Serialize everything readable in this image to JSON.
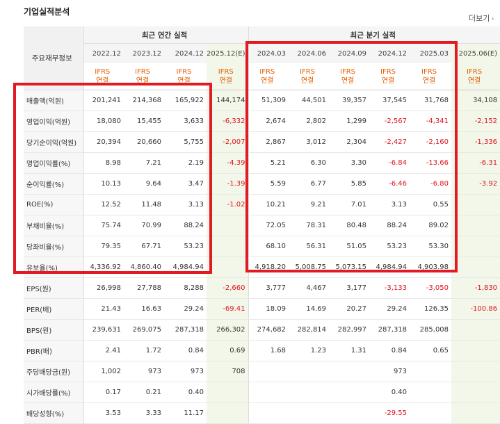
{
  "title": "기업실적분석",
  "more_label": "더보기",
  "header_label": "주요재무정보",
  "annual_group": "최근 연간 실적",
  "quarter_group": "최근 분기 실적",
  "periods": [
    "2022.12",
    "2023.12",
    "2024.12",
    "2025.12(E)",
    "2024.03",
    "2024.06",
    "2024.09",
    "2024.12",
    "2025.03",
    "2025.06(E)"
  ],
  "standard_top": "IFRS",
  "standard_bottom": "연결",
  "colors": {
    "negative": "#e0141e",
    "ifrs": "#e35f00",
    "highlight_box": "#e21b23"
  },
  "rows": [
    {
      "label": "매출액(억원)",
      "values": [
        "201,241",
        "214,368",
        "165,922",
        "144,174",
        "51,309",
        "44,501",
        "39,357",
        "37,545",
        "31,768",
        "34,108"
      ]
    },
    {
      "label": "영업이익(억원)",
      "values": [
        "18,080",
        "15,455",
        "3,633",
        "-6,332",
        "2,674",
        "2,802",
        "1,299",
        "-2,567",
        "-4,341",
        "-2,152"
      ]
    },
    {
      "label": "당기순이익(억원)",
      "values": [
        "20,394",
        "20,660",
        "5,755",
        "-2,007",
        "2,867",
        "3,012",
        "2,304",
        "-2,427",
        "-2,160",
        "-1,336"
      ]
    },
    {
      "label": "영업이익률(%)",
      "values": [
        "8.98",
        "7.21",
        "2.19",
        "-4.39",
        "5.21",
        "6.30",
        "3.30",
        "-6.84",
        "-13.66",
        "-6.31"
      ]
    },
    {
      "label": "순이익률(%)",
      "values": [
        "10.13",
        "9.64",
        "3.47",
        "-1.39",
        "5.59",
        "6.77",
        "5.85",
        "-6.46",
        "-6.80",
        "-3.92"
      ]
    },
    {
      "label": "ROE(%)",
      "values": [
        "12.52",
        "11.48",
        "3.13",
        "-1.02",
        "10.21",
        "9.21",
        "7.01",
        "3.13",
        "0.55",
        ""
      ]
    },
    {
      "label": "부채비율(%)",
      "values": [
        "75.74",
        "70.99",
        "88.24",
        "",
        "72.05",
        "78.31",
        "80.48",
        "88.24",
        "89.02",
        ""
      ]
    },
    {
      "label": "당좌비율(%)",
      "values": [
        "79.35",
        "67.71",
        "53.23",
        "",
        "68.10",
        "56.31",
        "51.05",
        "53.23",
        "53.30",
        ""
      ]
    },
    {
      "label": "유보율(%)",
      "values": [
        "4,336.92",
        "4,860.40",
        "4,984.94",
        "",
        "4,918.20",
        "5,008.75",
        "5,073.15",
        "4,984.94",
        "4,903.98",
        ""
      ]
    },
    {
      "label": "EPS(원)",
      "values": [
        "26,998",
        "27,788",
        "8,288",
        "-2,660",
        "3,777",
        "4,467",
        "3,177",
        "-3,133",
        "-3,050",
        "-1,830"
      ]
    },
    {
      "label": "PER(배)",
      "values": [
        "21.43",
        "16.63",
        "29.24",
        "-69.41",
        "18.09",
        "14.69",
        "20.27",
        "29.24",
        "126.35",
        "-100.86"
      ]
    },
    {
      "label": "BPS(원)",
      "values": [
        "239,631",
        "269,075",
        "287,318",
        "266,302",
        "274,682",
        "282,814",
        "282,997",
        "287,318",
        "285,008",
        ""
      ]
    },
    {
      "label": "PBR(배)",
      "values": [
        "2.41",
        "1.72",
        "0.84",
        "0.69",
        "1.68",
        "1.23",
        "1.31",
        "0.84",
        "0.65",
        ""
      ]
    },
    {
      "label": "주당배당금(원)",
      "values": [
        "1,002",
        "973",
        "973",
        "708",
        "",
        "",
        "",
        "973",
        "",
        ""
      ]
    },
    {
      "label": "시가배당률(%)",
      "values": [
        "0.17",
        "0.21",
        "0.40",
        "",
        "",
        "",
        "",
        "0.40",
        "",
        ""
      ]
    },
    {
      "label": "배당성향(%)",
      "values": [
        "3.53",
        "3.33",
        "11.17",
        "",
        "",
        "",
        "",
        "-29.55",
        "",
        ""
      ]
    }
  ]
}
